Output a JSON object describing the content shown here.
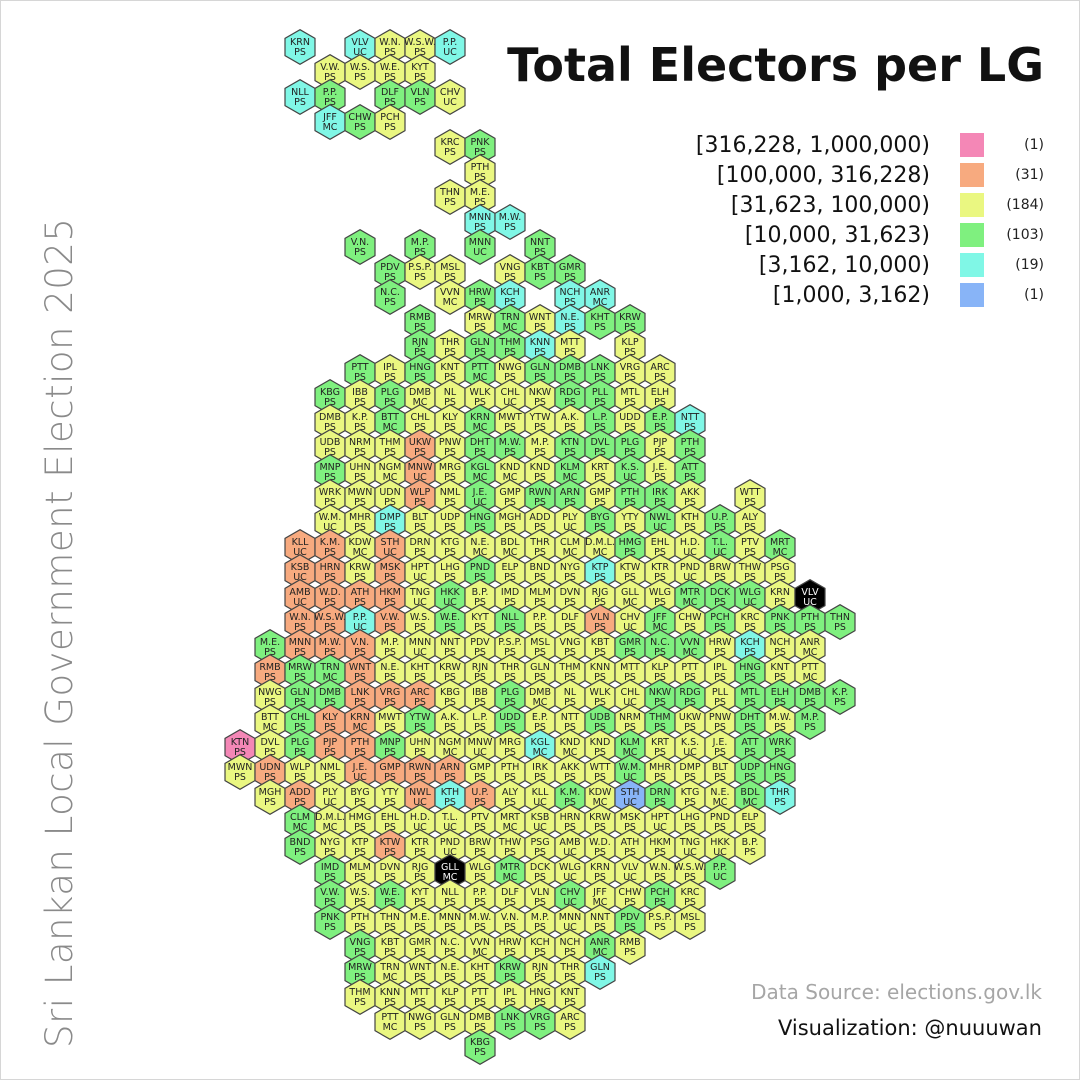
{
  "side_title": "Sri Lankan Local Government Election 2025",
  "title": "Total Electors per LG",
  "legend": [
    {
      "range": "[316,228, 1,000,000)",
      "count": "(1)",
      "color": "#f487b6"
    },
    {
      "range": "[100,000, 316,228)",
      "count": "(31)",
      "color": "#f7aa7f"
    },
    {
      "range": "[31,623, 100,000)",
      "count": "(184)",
      "color": "#eaf781"
    },
    {
      "range": "[10,000, 31,623)",
      "count": "(103)",
      "color": "#7ff07f"
    },
    {
      "range": "[3,162, 10,000)",
      "count": "(19)",
      "color": "#80f7e6"
    },
    {
      "range": "[1,000, 3,162)",
      "count": "(1)",
      "color": "#88b4f7"
    }
  ],
  "source": "Data Source: elections.gov.lk",
  "credit": "Visualization: @nuuuwan",
  "map": {
    "labels": [
      "KRN|PS",
      "VLV|UC",
      "W.N.|PS",
      "W.S.W.|PS",
      "P.P.|UC",
      "V.W.|PS",
      "W.S.|PS",
      "W.E.|PS",
      "KYT|PS",
      "NLL|PS",
      "P.P.|PS",
      "DLF|PS",
      "VLN|PS",
      "CHV|UC",
      "JFF|MC",
      "CHW|PS",
      "PCH|PS",
      "KRC|PS",
      "PNK|PS",
      "PTH|PS",
      "THN|PS",
      "M.E.|PS",
      "MNN|PS",
      "M.W.|PS",
      "V.N.|PS",
      "M.P.|PS",
      "MNN|UC",
      "NNT|PS",
      "PDV|PS",
      "P.S.P.|PS",
      "MSL|PS",
      "VNG|PS",
      "KBT|PS",
      "GMR|PS",
      "N.C.|PS",
      "VVN|MC",
      "HRW|PS",
      "KCH|PS",
      "NCH|PS",
      "ANR|MC",
      "RMB|PS",
      "MRW|PS",
      "TRN|MC",
      "WNT|PS",
      "N.E.|PS",
      "KHT|PS",
      "KRW|PS",
      "RJN|PS",
      "THR|PS",
      "GLN|PS",
      "THM|PS",
      "KNN|PS",
      "MTT|PS",
      "KLP|PS",
      "PTT|PS",
      "IPL|PS",
      "HNG|PS",
      "KNT|PS",
      "PTT|MC",
      "NWG|PS",
      "GLN|PS",
      "DMB|PS",
      "LNK|PS",
      "VRG|PS",
      "ARC|PS",
      "KBG|PS",
      "IBB|PS",
      "PLG|PS",
      "DMB|MC",
      "NL|PS",
      "WLK|PS",
      "CHL|UC",
      "NKW|PS",
      "RDG|PS",
      "PLL|PS",
      "MTL|PS",
      "ELH|PS",
      "DMB|PS",
      "K.P.|PS",
      "BTT|MC",
      "CHL|PS",
      "KLY|PS",
      "KRN|MC",
      "MWT|PS",
      "YTW|PS",
      "A.K.|PS",
      "L.P.|PS",
      "UDD|PS",
      "E.P.|PS",
      "NTT|PS",
      "UDB|PS",
      "NRM|PS",
      "THM|PS",
      "UKW|PS",
      "PNW|PS",
      "DHT|PS",
      "M.W.|PS",
      "M.P.|PS",
      "KTN|PS",
      "DVL|PS",
      "PLG|PS",
      "PJP|PS",
      "PTH|PS",
      "MNP|PS",
      "UHN|PS",
      "NGM|MC",
      "MNW|UC",
      "MRG|PS",
      "KGL|MC",
      "KND|MC",
      "KND|PS",
      "KLM|MC",
      "KRT|PS",
      "K.S.|UC",
      "J.E.|PS",
      "ATT|PS",
      "WRK|PS",
      "MWN|PS",
      "UDN|PS",
      "WLP|PS",
      "NML|PS",
      "J.E.|UC",
      "GMP|PS",
      "RWN|PS",
      "ARN|PS",
      "GMP|PS",
      "PTH|PS",
      "IRK|PS",
      "AKK|PS",
      "WTT|PS",
      "W.M.|UC",
      "MHR|PS",
      "DMP|PS",
      "BLT|PS",
      "UDP|PS",
      "HNG|PS",
      "MGH|PS",
      "ADD|PS",
      "PLY|UC",
      "BYG|PS",
      "YTY|PS",
      "NWL|UC",
      "KTH|PS",
      "U.P.|PS",
      "ALY|PS",
      "KLL|UC",
      "K.M.|PS",
      "KDW|MC",
      "STH|UC",
      "DRN|PS",
      "KTG|PS",
      "N.E.|MC",
      "BDL|MC",
      "THR|PS",
      "CLM|MC",
      "D.M.L.|MC",
      "HMG|PS",
      "EHL|PS",
      "H.D.|UC",
      "T.L.|UC",
      "PTV|PS",
      "MRT|MC",
      "KSB|UC",
      "HRN|PS",
      "KRW|PS",
      "MSK|PS",
      "HPT|UC",
      "LHG|PS",
      "PND|PS",
      "ELP|PS",
      "BND|PS",
      "NYG|PS",
      "KTP|PS",
      "KTW|PS",
      "KTR|PS",
      "PND|UC",
      "BRW|PS",
      "THW|PS",
      "PSG|PS",
      "AMB|UC",
      "W.D.|PS",
      "ATH|PS",
      "HKM|PS",
      "TNG|UC",
      "HKK|UC",
      "B.P.|PS",
      "IMD|PS",
      "MLM|PS",
      "DVN|PS",
      "RJG|PS",
      "GLL|MC",
      "WLG|PS",
      "MTR|MC",
      "DCK|PS",
      "WLG|UC"
    ]
  }
}
